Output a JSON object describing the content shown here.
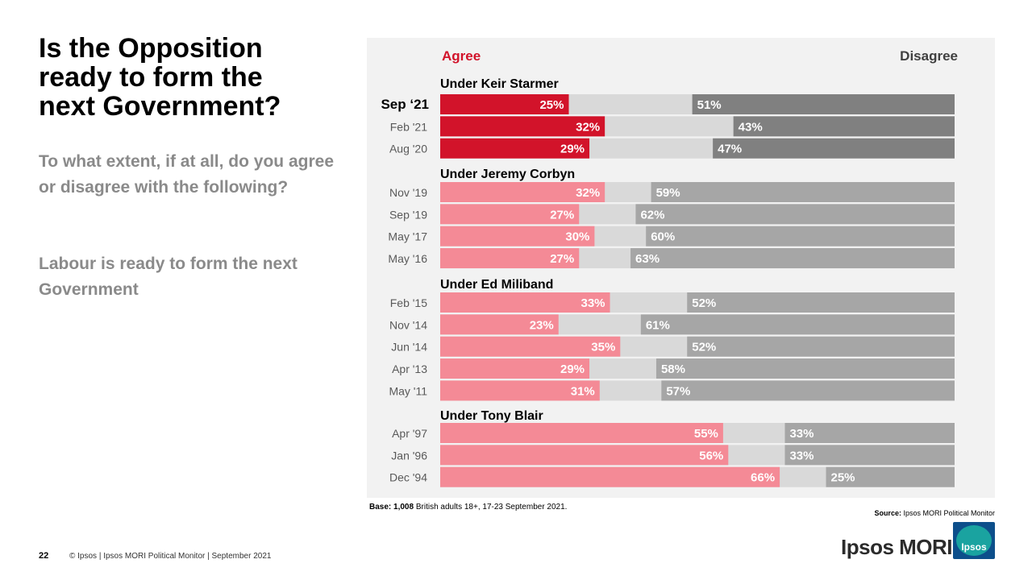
{
  "title": "Is the Opposition\nready to form the\nnext Government?",
  "subtitle": "To what extent, if at all, do you agree or disagree with the following?",
  "statement": "Labour is ready to form the next Government",
  "base_label": "Base:",
  "base_bold": "1,008",
  "base_text": " British adults 18+, 17-23 September 2021.",
  "source_label": "Source:",
  "source_text": " Ipsos MORI Political Monitor",
  "page_number": "22",
  "footer": "© Ipsos | Ipsos MORI Political Monitor | September 2021",
  "brand": "Ipsos MORI",
  "logo_text": "Ipsos",
  "colors": {
    "agree_current": "#d2132a",
    "agree_past": "#f48a96",
    "neutral": "#d9d9d9",
    "disagree_current": "#808080",
    "disagree_past": "#a6a6a6"
  },
  "chart_data": {
    "type": "bar",
    "stacked": true,
    "orientation": "horizontal",
    "legend": [
      "Agree",
      "Disagree"
    ],
    "xlim": [
      0,
      100
    ],
    "groups": [
      {
        "label": "Under Keir Starmer",
        "rows": [
          {
            "date": "Sep ‘21",
            "agree": 25,
            "disagree": 51,
            "highlight": true
          },
          {
            "date": "Feb '21",
            "agree": 32,
            "disagree": 43
          },
          {
            "date": "Aug '20",
            "agree": 29,
            "disagree": 47
          }
        ]
      },
      {
        "label": "Under Jeremy Corbyn",
        "rows": [
          {
            "date": "Nov '19",
            "agree": 32,
            "disagree": 59
          },
          {
            "date": "Sep '19",
            "agree": 27,
            "disagree": 62
          },
          {
            "date": "May '17",
            "agree": 30,
            "disagree": 60
          },
          {
            "date": "May '16",
            "agree": 27,
            "disagree": 63
          }
        ]
      },
      {
        "label": "Under Ed Miliband",
        "rows": [
          {
            "date": "Feb '15",
            "agree": 33,
            "disagree": 52
          },
          {
            "date": "Nov '14",
            "agree": 23,
            "disagree": 61
          },
          {
            "date": "Jun '14",
            "agree": 35,
            "disagree": 52
          },
          {
            "date": "Apr '13",
            "agree": 29,
            "disagree": 58
          },
          {
            "date": "May '11",
            "agree": 31,
            "disagree": 57
          }
        ]
      },
      {
        "label": "Under Tony Blair",
        "rows": [
          {
            "date": "Apr '97",
            "agree": 55,
            "disagree": 33
          },
          {
            "date": "Jan '96",
            "agree": 56,
            "disagree": 33
          },
          {
            "date": "Dec '94",
            "agree": 66,
            "disagree": 25
          }
        ]
      }
    ]
  }
}
